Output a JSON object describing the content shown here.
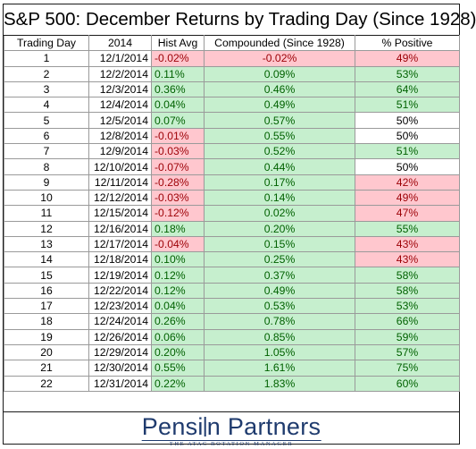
{
  "title": "S&P 500: December Returns by Trading Day (Since 1928)",
  "headers": [
    "Trading Day",
    "2014",
    "Hist Avg",
    "Compounded (Since 1928)",
    "% Positive"
  ],
  "rows": [
    {
      "day": "1",
      "date": "12/1/2014",
      "hist": "-0.02%",
      "hist_color": "neg",
      "comp": "-0.02%",
      "comp_color": "neg",
      "pos": "49%",
      "pos_color": "neg"
    },
    {
      "day": "2",
      "date": "12/2/2014",
      "hist": "0.11%",
      "hist_color": "pos",
      "comp": "0.09%",
      "comp_color": "pos",
      "pos": "53%",
      "pos_color": "pos"
    },
    {
      "day": "3",
      "date": "12/3/2014",
      "hist": "0.36%",
      "hist_color": "pos",
      "comp": "0.46%",
      "comp_color": "pos",
      "pos": "64%",
      "pos_color": "pos"
    },
    {
      "day": "4",
      "date": "12/4/2014",
      "hist": "0.04%",
      "hist_color": "pos",
      "comp": "0.49%",
      "comp_color": "pos",
      "pos": "51%",
      "pos_color": "pos"
    },
    {
      "day": "5",
      "date": "12/5/2014",
      "hist": "0.07%",
      "hist_color": "pos",
      "comp": "0.57%",
      "comp_color": "pos",
      "pos": "50%",
      "pos_color": "neu"
    },
    {
      "day": "6",
      "date": "12/8/2014",
      "hist": "-0.01%",
      "hist_color": "neg",
      "comp": "0.55%",
      "comp_color": "pos",
      "pos": "50%",
      "pos_color": "neu"
    },
    {
      "day": "7",
      "date": "12/9/2014",
      "hist": "-0.03%",
      "hist_color": "neg",
      "comp": "0.52%",
      "comp_color": "pos",
      "pos": "51%",
      "pos_color": "pos"
    },
    {
      "day": "8",
      "date": "12/10/2014",
      "hist": "-0.07%",
      "hist_color": "neg",
      "comp": "0.44%",
      "comp_color": "pos",
      "pos": "50%",
      "pos_color": "neu"
    },
    {
      "day": "9",
      "date": "12/11/2014",
      "hist": "-0.28%",
      "hist_color": "neg",
      "comp": "0.17%",
      "comp_color": "pos",
      "pos": "42%",
      "pos_color": "neg"
    },
    {
      "day": "10",
      "date": "12/12/2014",
      "hist": "-0.03%",
      "hist_color": "neg",
      "comp": "0.14%",
      "comp_color": "pos",
      "pos": "49%",
      "pos_color": "neg"
    },
    {
      "day": "11",
      "date": "12/15/2014",
      "hist": "-0.12%",
      "hist_color": "neg",
      "comp": "0.02%",
      "comp_color": "pos",
      "pos": "47%",
      "pos_color": "neg"
    },
    {
      "day": "12",
      "date": "12/16/2014",
      "hist": "0.18%",
      "hist_color": "pos",
      "comp": "0.20%",
      "comp_color": "pos",
      "pos": "55%",
      "pos_color": "pos"
    },
    {
      "day": "13",
      "date": "12/17/2014",
      "hist": "-0.04%",
      "hist_color": "neg",
      "comp": "0.15%",
      "comp_color": "pos",
      "pos": "43%",
      "pos_color": "neg"
    },
    {
      "day": "14",
      "date": "12/18/2014",
      "hist": "0.10%",
      "hist_color": "pos",
      "comp": "0.25%",
      "comp_color": "pos",
      "pos": "43%",
      "pos_color": "neg"
    },
    {
      "day": "15",
      "date": "12/19/2014",
      "hist": "0.12%",
      "hist_color": "pos",
      "comp": "0.37%",
      "comp_color": "pos",
      "pos": "58%",
      "pos_color": "pos"
    },
    {
      "day": "16",
      "date": "12/22/2014",
      "hist": "0.12%",
      "hist_color": "pos",
      "comp": "0.49%",
      "comp_color": "pos",
      "pos": "58%",
      "pos_color": "pos"
    },
    {
      "day": "17",
      "date": "12/23/2014",
      "hist": "0.04%",
      "hist_color": "pos",
      "comp": "0.53%",
      "comp_color": "pos",
      "pos": "53%",
      "pos_color": "pos"
    },
    {
      "day": "18",
      "date": "12/24/2014",
      "hist": "0.26%",
      "hist_color": "pos",
      "comp": "0.78%",
      "comp_color": "pos",
      "pos": "66%",
      "pos_color": "pos"
    },
    {
      "day": "19",
      "date": "12/26/2014",
      "hist": "0.06%",
      "hist_color": "pos",
      "comp": "0.85%",
      "comp_color": "pos",
      "pos": "59%",
      "pos_color": "pos"
    },
    {
      "day": "20",
      "date": "12/29/2014",
      "hist": "0.20%",
      "hist_color": "pos",
      "comp": "1.05%",
      "comp_color": "pos",
      "pos": "57%",
      "pos_color": "pos"
    },
    {
      "day": "21",
      "date": "12/30/2014",
      "hist": "0.55%",
      "hist_color": "pos",
      "comp": "1.61%",
      "comp_color": "pos",
      "pos": "75%",
      "pos_color": "pos"
    },
    {
      "day": "22",
      "date": "12/31/2014",
      "hist": "0.22%",
      "hist_color": "pos",
      "comp": "1.83%",
      "comp_color": "pos",
      "pos": "60%",
      "pos_color": "pos"
    }
  ],
  "colors": {
    "positive_fill": "#c6efce",
    "negative_fill": "#ffc7ce",
    "brand": "#1f3b6e"
  },
  "logo": {
    "name_part1": "Pensi",
    "name_part2": "n Partners",
    "tagline": "THE ATAC ROTATION MANAGER"
  }
}
